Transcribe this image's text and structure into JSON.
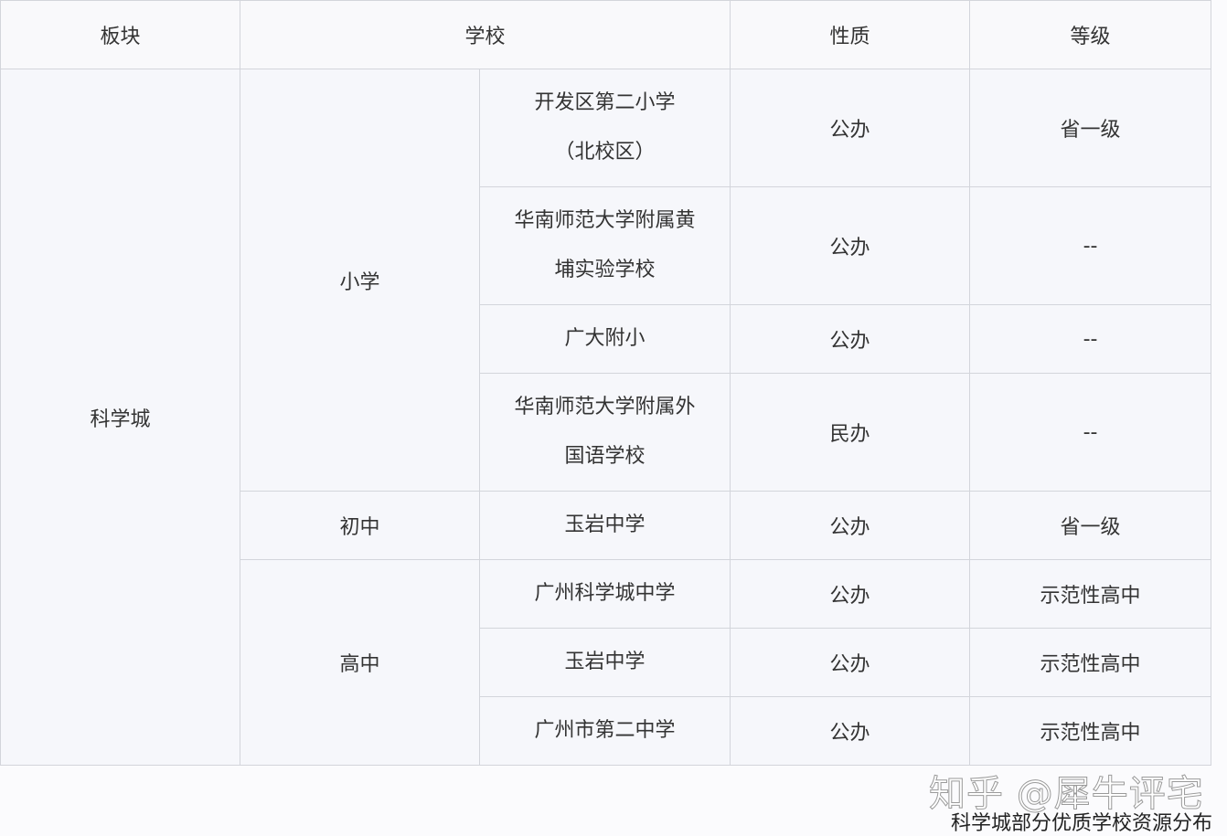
{
  "headers": [
    "板块",
    "学校",
    "性质",
    "等级"
  ],
  "region": "科学城",
  "groups": [
    {
      "level": "小学",
      "schools": [
        {
          "name_lines": [
            "开发区第二小学",
            "（北校区）"
          ],
          "type": "公办",
          "grade": "省一级"
        },
        {
          "name_lines": [
            "华南师范大学附属黄",
            "埔实验学校"
          ],
          "type": "公办",
          "grade": "--"
        },
        {
          "name_lines": [
            "广大附小"
          ],
          "type": "公办",
          "grade": "--"
        },
        {
          "name_lines": [
            "华南师范大学附属外",
            "国语学校"
          ],
          "type": "民办",
          "grade": "--"
        }
      ]
    },
    {
      "level": "初中",
      "schools": [
        {
          "name_lines": [
            "玉岩中学"
          ],
          "type": "公办",
          "grade": "省一级"
        }
      ]
    },
    {
      "level": "高中",
      "schools": [
        {
          "name_lines": [
            "广州科学城中学"
          ],
          "type": "公办",
          "grade": "示范性高中"
        },
        {
          "name_lines": [
            "玉岩中学"
          ],
          "type": "公办",
          "grade": "示范性高中"
        },
        {
          "name_lines": [
            "广州市第二中学"
          ],
          "type": "公办",
          "grade": "示范性高中"
        }
      ]
    }
  ],
  "watermark": "知乎 @犀牛评宅",
  "caption": "科学城部分优质学校资源分布"
}
